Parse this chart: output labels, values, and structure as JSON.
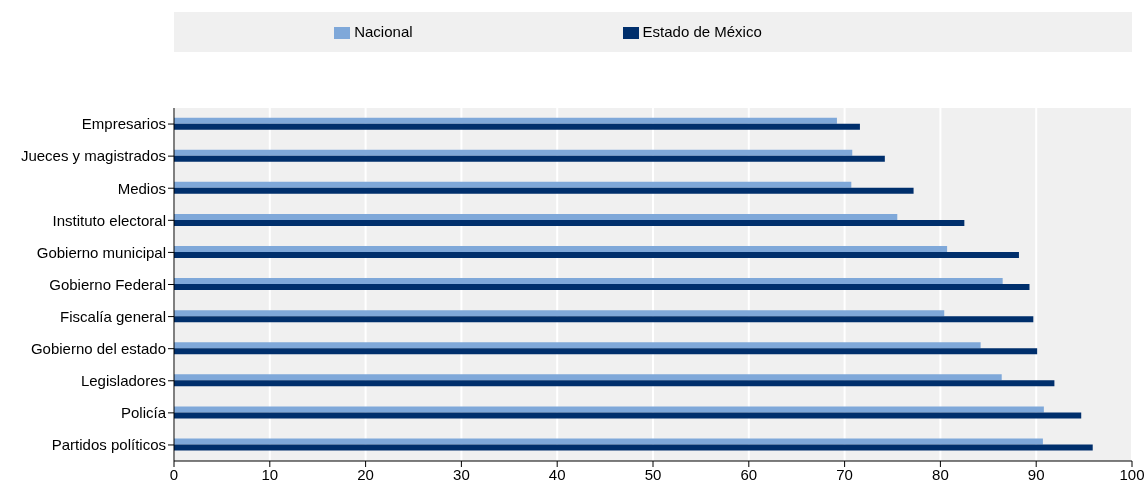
{
  "chart_data": {
    "type": "bar",
    "orientation": "horizontal",
    "categories": [
      "Empresarios",
      "Jueces y magistrados",
      "Medios",
      "Instituto electoral",
      "Gobierno municipal",
      "Gobierno Federal",
      "Fiscalía general",
      "Gobierno del estado",
      "Legisladores",
      "Policía",
      "Partidos políticos"
    ],
    "series": [
      {
        "name": "Nacional",
        "color": "#7fa8d9",
        "values": [
          69.2,
          70.8,
          70.7,
          75.5,
          80.7,
          86.5,
          80.4,
          84.2,
          86.4,
          90.8,
          90.7
        ]
      },
      {
        "name": "Estado de México",
        "color": "#002f6c",
        "values": [
          71.6,
          74.2,
          77.2,
          82.5,
          88.2,
          89.3,
          89.7,
          90.1,
          91.9,
          94.7,
          95.9
        ]
      }
    ],
    "xlim": [
      0,
      100
    ],
    "xticks": [
      0,
      10,
      20,
      30,
      40,
      50,
      60,
      70,
      80,
      90,
      100
    ],
    "grid": "x",
    "legend": "top"
  }
}
